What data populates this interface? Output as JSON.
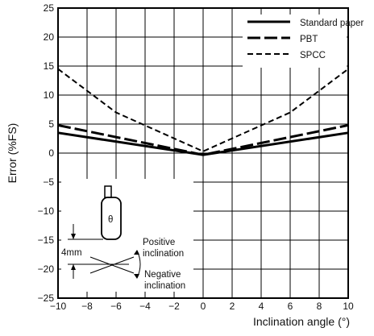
{
  "chart_data": {
    "type": "line",
    "title": "",
    "xlabel": "Inclination angle (°)",
    "ylabel": "Error (%FS)",
    "xlim": [
      -10,
      10
    ],
    "ylim": [
      -25,
      25
    ],
    "x_ticks": [
      -10,
      -8,
      -6,
      -4,
      -2,
      0,
      2,
      4,
      6,
      8,
      10
    ],
    "x_tick_labels": [
      "−10",
      "−8",
      "−6",
      "−4",
      "−2",
      "0",
      "2",
      "4",
      "6",
      "8",
      "10"
    ],
    "y_ticks": [
      25,
      20,
      15,
      10,
      5,
      0,
      -5,
      -10,
      -15,
      -20,
      -25
    ],
    "y_tick_labels": [
      "25",
      "20",
      "15",
      "10",
      "5",
      "0",
      "−5",
      "−10",
      "−15",
      "−20",
      "−25"
    ],
    "grid": true,
    "legend_position": "top-right",
    "series": [
      {
        "name": "Standard paper",
        "style": "solid",
        "x": [
          -10,
          0,
          10
        ],
        "y": [
          3.5,
          -0.3,
          3.5
        ]
      },
      {
        "name": "PBT",
        "style": "long-dash",
        "x": [
          -10,
          0,
          10
        ],
        "y": [
          4.8,
          -0.3,
          4.8
        ]
      },
      {
        "name": "SPCC",
        "style": "short-dash",
        "x": [
          -10,
          -6,
          0,
          6,
          10
        ],
        "y": [
          14.5,
          7.0,
          0.3,
          7.0,
          14.5
        ]
      }
    ],
    "annotations": {
      "sensor_label": "θ",
      "gap_label": "4mm",
      "positive_label": [
        "Positive",
        "inclination"
      ],
      "negative_label": [
        "Negative",
        "inclination"
      ]
    }
  }
}
